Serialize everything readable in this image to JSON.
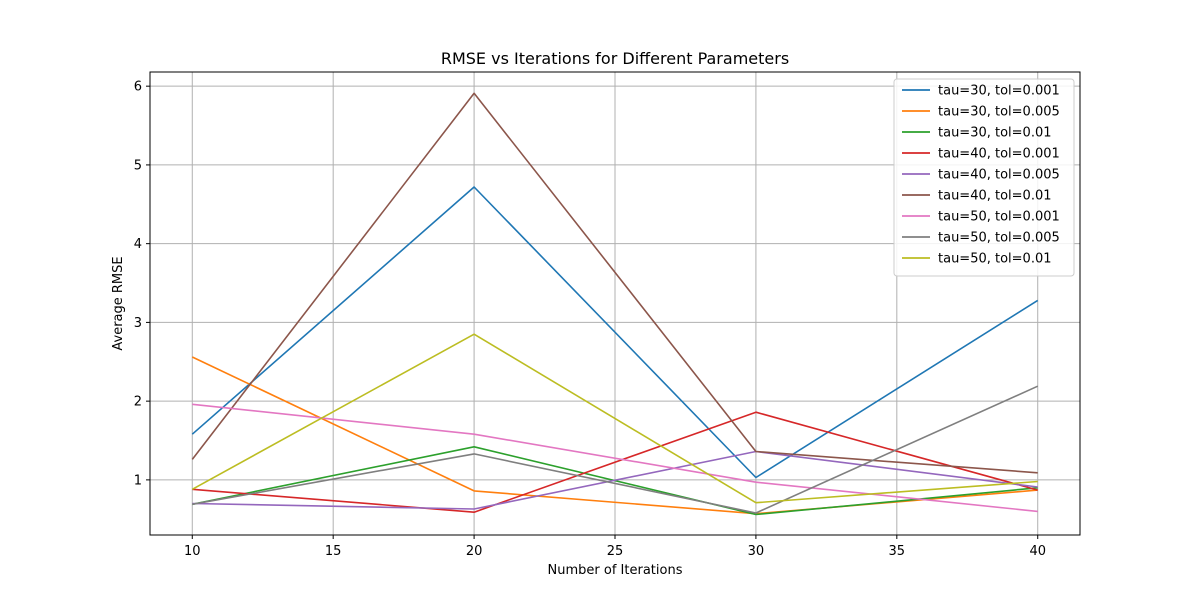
{
  "chart_data": {
    "type": "line",
    "title": "RMSE vs Iterations for Different Parameters",
    "xlabel": "Number of Iterations",
    "ylabel": "Average RMSE",
    "x": [
      10,
      20,
      30,
      40
    ],
    "xticks": [
      10,
      15,
      20,
      25,
      30,
      35,
      40
    ],
    "yticks": [
      1,
      2,
      3,
      4,
      5,
      6
    ],
    "xlim": [
      8.5,
      41.5
    ],
    "ylim": [
      0.3,
      6.18
    ],
    "grid": true,
    "legend_position": "top-right",
    "series": [
      {
        "name": "tau=30, tol=0.001",
        "color": "#1f77b4",
        "values": [
          1.58,
          4.72,
          1.03,
          3.28
        ]
      },
      {
        "name": "tau=30, tol=0.005",
        "color": "#ff7f0e",
        "values": [
          2.56,
          0.86,
          0.57,
          0.87
        ]
      },
      {
        "name": "tau=30, tol=0.01",
        "color": "#2ca02c",
        "values": [
          0.69,
          1.42,
          0.56,
          0.9
        ]
      },
      {
        "name": "tau=40, tol=0.001",
        "color": "#d62728",
        "values": [
          0.88,
          0.59,
          1.86,
          0.87
        ]
      },
      {
        "name": "tau=40, tol=0.005",
        "color": "#9467bd",
        "values": [
          0.7,
          0.63,
          1.36,
          0.91
        ]
      },
      {
        "name": "tau=40, tol=0.01",
        "color": "#8c564b",
        "values": [
          1.26,
          5.91,
          1.36,
          1.09
        ]
      },
      {
        "name": "tau=50, tol=0.001",
        "color": "#e377c2",
        "values": [
          1.96,
          1.58,
          0.97,
          0.6
        ]
      },
      {
        "name": "tau=50, tol=0.005",
        "color": "#7f7f7f",
        "values": [
          0.69,
          1.33,
          0.58,
          2.19
        ]
      },
      {
        "name": "tau=50, tol=0.01",
        "color": "#bcbd22",
        "values": [
          0.88,
          2.85,
          0.71,
          0.98
        ]
      }
    ]
  }
}
